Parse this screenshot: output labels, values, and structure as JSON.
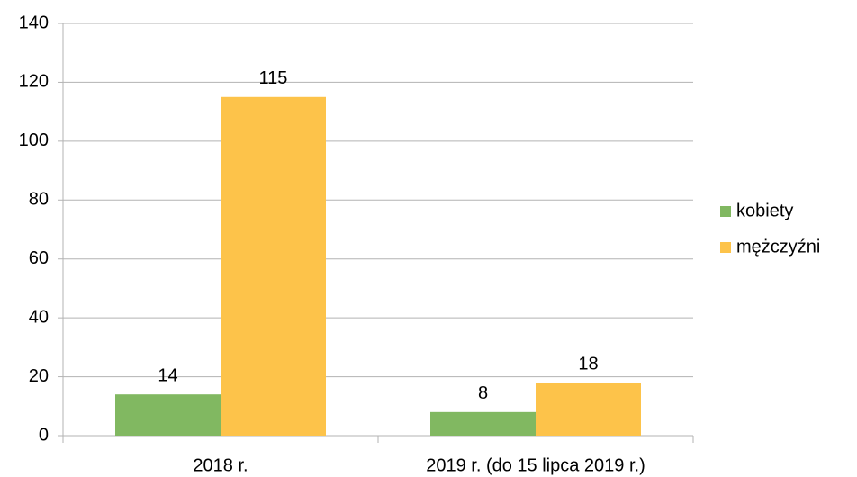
{
  "chart_data": {
    "type": "bar",
    "categories": [
      "2018 r.",
      "2019 r. (do 15 lipca 2019 r.)"
    ],
    "series": [
      {
        "name": "kobiety",
        "color": "#81b861",
        "values": [
          14,
          8
        ]
      },
      {
        "name": "mężczyźni",
        "color": "#fdc34a",
        "values": [
          115,
          18
        ]
      }
    ],
    "ylim": [
      0,
      140
    ],
    "yticks": [
      0,
      20,
      40,
      60,
      80,
      100,
      120,
      140
    ],
    "grid": true,
    "legend": "right"
  }
}
